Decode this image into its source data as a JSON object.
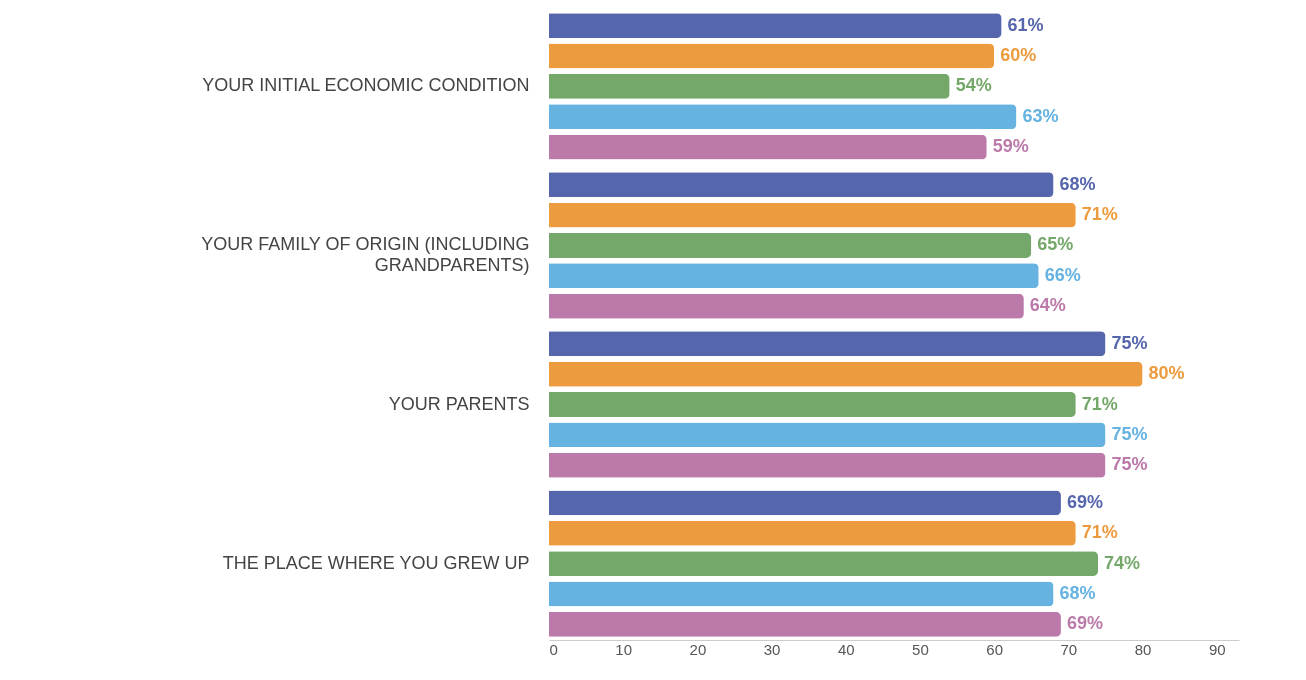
{
  "chart_data": {
    "type": "bar",
    "orientation": "horizontal",
    "categories": [
      "YOUR INITIAL ECONOMIC CONDITION",
      "YOUR FAMILY OF ORIGIN (INCLUDING GRANDPARENTS)",
      "YOUR PARENTS",
      "THE PLACE WHERE YOU GREW UP"
    ],
    "series": [
      {
        "color": "#5566ad",
        "values": [
          61,
          68,
          75,
          69
        ],
        "value_labels": [
          "61%",
          "68%",
          "75%",
          "69%"
        ]
      },
      {
        "color": "#ec9c3f",
        "values": [
          60,
          71,
          80,
          71
        ],
        "value_labels": [
          "60%",
          "71%",
          "80%",
          "71%"
        ]
      },
      {
        "color": "#74a86a",
        "values": [
          54,
          65,
          71,
          74
        ],
        "value_labels": [
          "54%",
          "65%",
          "71%",
          "74%"
        ]
      },
      {
        "color": "#66b3e2",
        "values": [
          63,
          66,
          75,
          68
        ],
        "value_labels": [
          "63%",
          "66%",
          "75%",
          "68%"
        ]
      },
      {
        "color": "#bb7aaa",
        "values": [
          59,
          64,
          75,
          69
        ],
        "value_labels": [
          "59%",
          "64%",
          "75%",
          "69%"
        ]
      }
    ],
    "xlim": [
      0,
      93
    ],
    "xticks": [
      0,
      10,
      20,
      30,
      40,
      50,
      60,
      70,
      80,
      90
    ]
  }
}
